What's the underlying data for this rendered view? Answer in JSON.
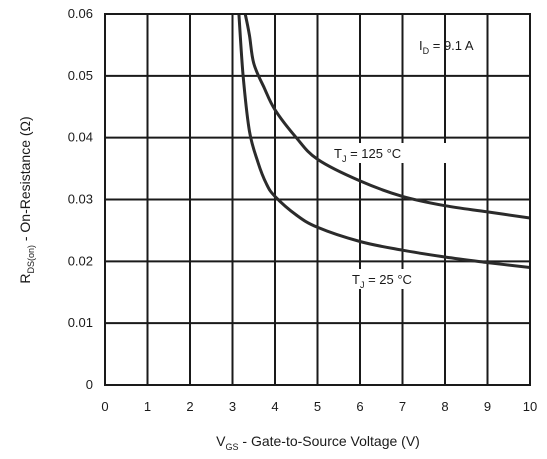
{
  "chart_data": {
    "type": "line",
    "xlabel": {
      "main": "V",
      "sub": "GS",
      "rest": " - Gate-to-Source Voltage (V)"
    },
    "ylabel": {
      "main": "R",
      "sub": "DS(on)",
      "rest": " - On-Resistance (Ω)"
    },
    "xlim": [
      0,
      10
    ],
    "ylim": [
      0,
      0.06
    ],
    "x_ticks": [
      "0",
      "1",
      "2",
      "3",
      "4",
      "5",
      "6",
      "7",
      "8",
      "9",
      "10"
    ],
    "y_ticks": [
      "0",
      "0.01",
      "0.02",
      "0.03",
      "0.04",
      "0.05",
      "0.06"
    ],
    "grid": true,
    "annotations": [
      {
        "main": "I",
        "sub": "D",
        "rest": " = 9.1 A"
      }
    ],
    "series": [
      {
        "name": {
          "main": "T",
          "sub": "J",
          "rest": " = 125 °C"
        },
        "color": "#2b2b2b",
        "x": [
          3.3,
          3.4,
          3.5,
          3.75,
          4.0,
          4.5,
          5.0,
          6.0,
          7.0,
          8.0,
          9.0,
          10.0
        ],
        "y": [
          0.06,
          0.0565,
          0.052,
          0.048,
          0.0445,
          0.04,
          0.0365,
          0.033,
          0.0305,
          0.029,
          0.028,
          0.027
        ]
      },
      {
        "name": {
          "main": "T",
          "sub": "J",
          "rest": " = 25 °C"
        },
        "color": "#2b2b2b",
        "x": [
          3.15,
          3.25,
          3.4,
          3.6,
          3.8,
          4.0,
          4.5,
          5.0,
          6.0,
          7.0,
          8.0,
          9.0,
          10.0
        ],
        "y": [
          0.06,
          0.05,
          0.041,
          0.036,
          0.0325,
          0.0305,
          0.0275,
          0.0255,
          0.0232,
          0.0218,
          0.0207,
          0.0198,
          0.019
        ]
      }
    ]
  }
}
